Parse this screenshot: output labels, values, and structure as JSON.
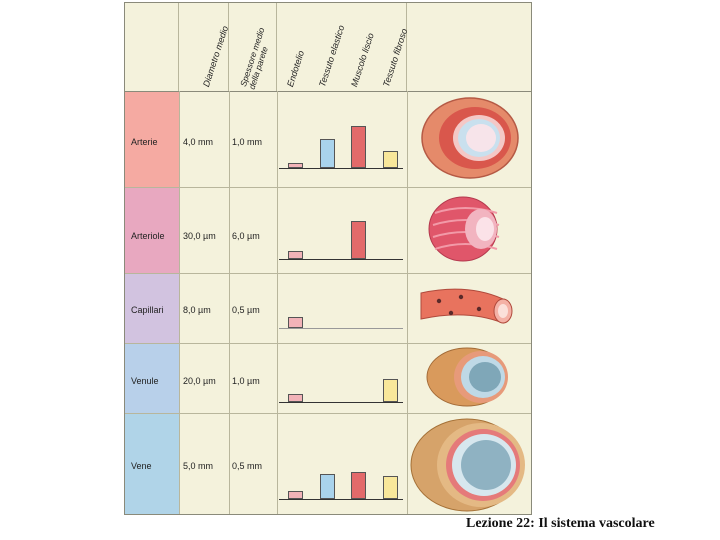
{
  "columns": {
    "diametro": "Diametro medio",
    "spessore": "Spessore medio della parete",
    "endotelio": "Endotelio",
    "elastico": "Tessuto elastico",
    "muscolo": "Muscolo liscio",
    "fibroso": "Tessuto fibroso"
  },
  "rows": [
    {
      "name": "Arterie",
      "diameter": "4,0 mm",
      "wall": "1,0 mm",
      "tissue": {
        "endotelio": 0.12,
        "elastico": 0.7,
        "muscolo": 1.0,
        "fibroso": 0.4
      }
    },
    {
      "name": "Arteriole",
      "diameter": "30,0 µm",
      "wall": "6,0 µm",
      "tissue": {
        "endotelio": 0.18,
        "elastico": 0,
        "muscolo": 0.9,
        "fibroso": 0
      }
    },
    {
      "name": "Capillari",
      "diameter": "8,0 µm",
      "wall": "0,5 µm",
      "tissue": {
        "endotelio": 0.25,
        "elastico": 0,
        "muscolo": 0,
        "fibroso": 0
      }
    },
    {
      "name": "Venule",
      "diameter": "20,0 µm",
      "wall": "1,0 µm",
      "tissue": {
        "endotelio": 0.18,
        "elastico": 0,
        "muscolo": 0,
        "fibroso": 0.55
      }
    },
    {
      "name": "Vene",
      "diameter": "5,0 mm",
      "wall": "0,5 mm",
      "tissue": {
        "endotelio": 0.18,
        "elastico": 0.6,
        "muscolo": 0.65,
        "fibroso": 0.55
      }
    }
  ],
  "colors": {
    "endotelio": "#f2b3b8",
    "elastico": "#a9d3ec",
    "muscolo": "#e36a6a",
    "fibroso": "#f8e79a",
    "bands": [
      "#f5aaa2",
      "#e8a8c0",
      "#d2c3e0",
      "#b8d0ea",
      "#b0d4e8"
    ]
  },
  "caption": "Lezione 22: Il sistema vascolare"
}
